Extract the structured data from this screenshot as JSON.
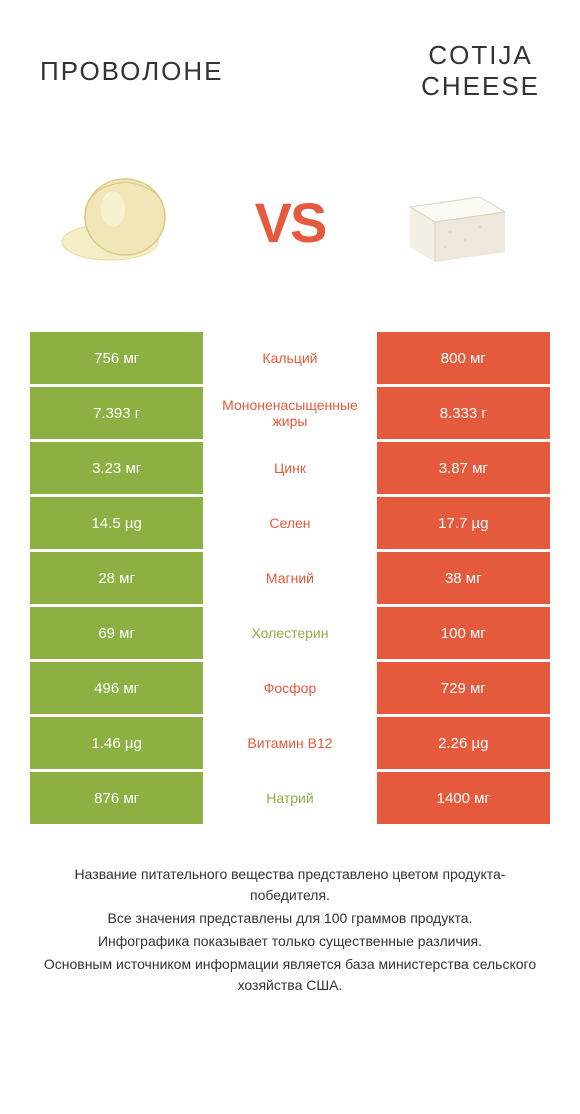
{
  "header": {
    "title_left": "Проволоне",
    "title_right_line1": "Cotija",
    "title_right_line2": "cheese"
  },
  "vs_text": "VS",
  "colors": {
    "green": "#8db042",
    "orange": "#e55a3c",
    "green_text": "#8db042",
    "orange_text": "#e55a3c"
  },
  "rows": [
    {
      "left": "756 мг",
      "mid": "Кальций",
      "right": "800 мг",
      "winner": "right"
    },
    {
      "left": "7.393 г",
      "mid": "Мононенасыщенные жиры",
      "right": "8.333 г",
      "winner": "right"
    },
    {
      "left": "3.23 мг",
      "mid": "Цинк",
      "right": "3.87 мг",
      "winner": "right"
    },
    {
      "left": "14.5 µg",
      "mid": "Селен",
      "right": "17.7 µg",
      "winner": "right"
    },
    {
      "left": "28 мг",
      "mid": "Магний",
      "right": "38 мг",
      "winner": "right"
    },
    {
      "left": "69 мг",
      "mid": "Холестерин",
      "right": "100 мг",
      "winner": "left"
    },
    {
      "left": "496 мг",
      "mid": "Фосфор",
      "right": "729 мг",
      "winner": "right"
    },
    {
      "left": "1.46 µg",
      "mid": "Витамин B12",
      "right": "2.26 µg",
      "winner": "right"
    },
    {
      "left": "876 мг",
      "mid": "Натрий",
      "right": "1400 мг",
      "winner": "left"
    }
  ],
  "footer": {
    "line1": "Название питательного вещества представлено цветом продукта-победителя.",
    "line2": "Все значения представлены для 100 граммов продукта.",
    "line3": "Инфографика показывает только существенные различия.",
    "line4": "Основным источником информации является база министерства сельского хозяйства США."
  }
}
